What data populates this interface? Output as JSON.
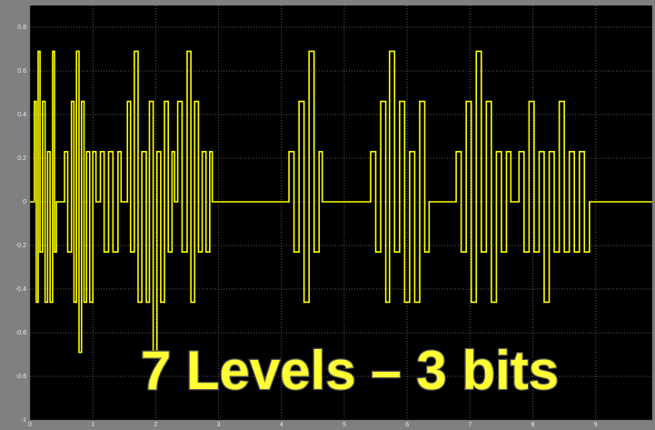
{
  "chart_data": {
    "type": "line",
    "step": true,
    "annotation": "7 Levels – 3 bits",
    "color": "#ffff00",
    "grid": true,
    "xlim": [
      0,
      9.9
    ],
    "ylim": [
      -1,
      0.9
    ],
    "xticks": [
      0,
      1,
      2,
      3,
      4,
      5,
      6,
      7,
      8,
      9
    ],
    "yticks": [
      0.8,
      0.6,
      0.4,
      0.2,
      0,
      -0.2,
      -0.4,
      -0.6,
      -0.8,
      -1
    ],
    "x": [
      0,
      0.07,
      0.1,
      0.13,
      0.16,
      0.2,
      0.24,
      0.28,
      0.32,
      0.36,
      0.39,
      0.42,
      0.55,
      0.6,
      0.66,
      0.7,
      0.74,
      0.78,
      0.82,
      0.86,
      0.9,
      0.95,
      1.0,
      1.05,
      1.12,
      1.18,
      1.25,
      1.32,
      1.4,
      1.45,
      1.55,
      1.6,
      1.66,
      1.72,
      1.78,
      1.85,
      1.9,
      1.96,
      2.02,
      2.08,
      2.14,
      2.2,
      2.26,
      2.3,
      2.35,
      2.42,
      2.5,
      2.56,
      2.62,
      2.68,
      2.74,
      2.8,
      2.86,
      2.9,
      4.12,
      4.2,
      4.28,
      4.36,
      4.44,
      4.52,
      4.6,
      4.65,
      5.42,
      5.5,
      5.58,
      5.66,
      5.72,
      5.8,
      5.88,
      5.96,
      6.04,
      6.12,
      6.2,
      6.28,
      6.35,
      6.78,
      6.86,
      6.94,
      7.02,
      7.1,
      7.18,
      7.26,
      7.34,
      7.42,
      7.5,
      7.58,
      7.65,
      7.78,
      7.86,
      7.94,
      8.02,
      8.1,
      8.18,
      8.26,
      8.34,
      8.42,
      8.5,
      8.58,
      8.66,
      8.74,
      8.82,
      8.9,
      9.9
    ],
    "values": [
      0,
      0.46,
      -0.46,
      0.69,
      -0.23,
      0.46,
      -0.46,
      0.23,
      -0.46,
      0.69,
      -0.23,
      0,
      0.23,
      -0.23,
      0.46,
      -0.46,
      0.69,
      -0.69,
      0.46,
      -0.46,
      0.23,
      -0.46,
      0.23,
      0,
      0.23,
      -0.23,
      0.23,
      -0.23,
      0.23,
      0,
      0.46,
      -0.23,
      0.69,
      -0.46,
      0.23,
      -0.46,
      0.46,
      -0.69,
      0.23,
      -0.46,
      0.46,
      -0.23,
      0.23,
      0,
      0.46,
      -0.23,
      0.69,
      -0.46,
      0.46,
      -0.23,
      0.23,
      -0.23,
      0.23,
      0,
      0.23,
      -0.23,
      0.46,
      -0.46,
      0.69,
      -0.23,
      0.23,
      0,
      0.23,
      -0.23,
      0.46,
      -0.46,
      0.69,
      -0.23,
      0.46,
      -0.46,
      0.23,
      -0.46,
      0.46,
      -0.23,
      0,
      0.23,
      -0.23,
      0.46,
      -0.46,
      0.69,
      -0.23,
      0.46,
      -0.46,
      0.23,
      -0.23,
      0.23,
      0,
      0.23,
      -0.23,
      0.46,
      -0.23,
      0.23,
      -0.46,
      0.23,
      -0.23,
      0.46,
      -0.23,
      0.23,
      -0.23,
      0.23,
      -0.23,
      0,
      0
    ]
  }
}
